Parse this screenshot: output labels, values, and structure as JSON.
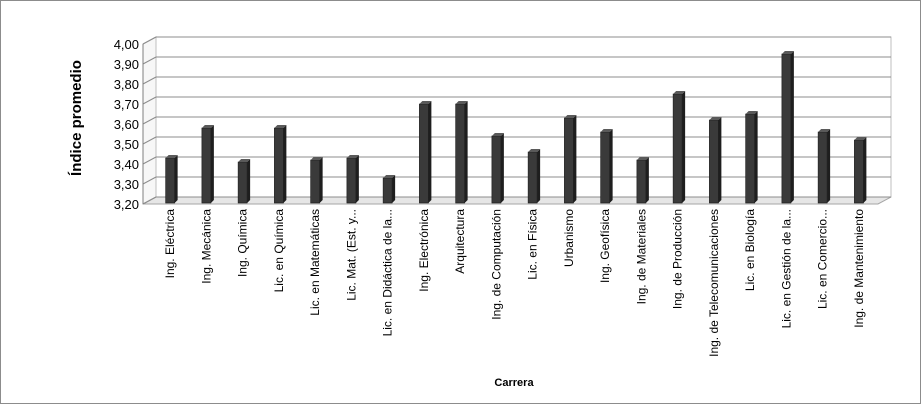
{
  "chart_data": {
    "type": "bar",
    "title": "",
    "xlabel": "Carrera",
    "ylabel": "Índice promedio",
    "ylim": [
      3.2,
      4.0
    ],
    "yticks": [
      "3,20",
      "3,30",
      "3,40",
      "3,50",
      "3,60",
      "3,70",
      "3,80",
      "3,90",
      "4,00"
    ],
    "grid": true,
    "legend": "none",
    "bar_color": "#3a3a3a",
    "categories": [
      "Ing. Eléctrica",
      "Ing. Mecánica",
      "Ing. Química",
      "Lic. en Química",
      "Lic. en Matemáticas",
      "Lic. Mat. (Est. y...",
      "Lic. en Didáctica de la...",
      "Ing. Electrónica",
      "Arquitectura",
      "Ing. de Computación",
      "Lic. en Física",
      "Urbanismo",
      "Ing. Geofísica",
      "Ing. de Materiales",
      "Ing. de Producción",
      "Ing. de Telecomunicaciones",
      "Lic. en Biología",
      "Lic. en Gestión de la...",
      "Lic. en Comercio...",
      "Ing. de Mantenimiento"
    ],
    "values": [
      3.43,
      3.58,
      3.41,
      3.58,
      3.42,
      3.43,
      3.33,
      3.7,
      3.7,
      3.54,
      3.46,
      3.63,
      3.56,
      3.42,
      3.75,
      3.62,
      3.65,
      3.95,
      3.56,
      3.52
    ]
  }
}
